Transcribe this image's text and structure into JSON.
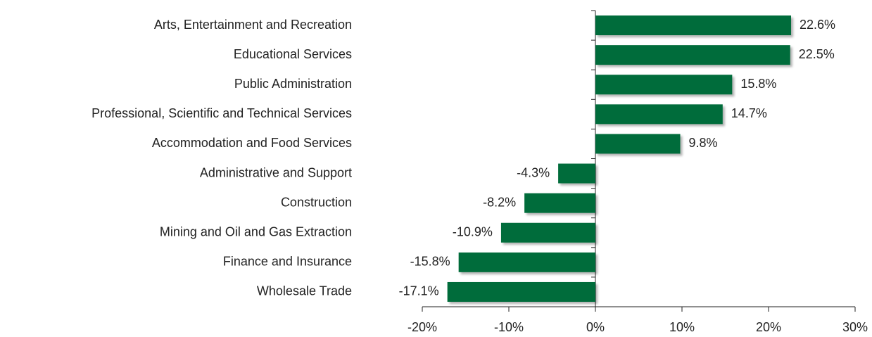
{
  "chart_data": {
    "type": "bar",
    "orientation": "horizontal",
    "categories": [
      "Arts, Entertainment and Recreation",
      "Educational Services",
      "Public Administration",
      "Professional, Scientific and Technical Services",
      "Accommodation and Food Services",
      "Administrative and Support",
      "Construction",
      "Mining and Oil and Gas Extraction",
      "Finance and Insurance",
      "Wholesale Trade"
    ],
    "values": [
      22.6,
      22.5,
      15.8,
      14.7,
      9.8,
      -4.3,
      -8.2,
      -10.9,
      -15.8,
      -17.1
    ],
    "value_labels": [
      "22.6%",
      "22.5%",
      "15.8%",
      "14.7%",
      "9.8%",
      "-4.3%",
      "-8.2%",
      "-10.9%",
      "-15.8%",
      "-17.1%"
    ],
    "color": "#046c3a",
    "xlim": [
      -20,
      30
    ],
    "xticks": [
      {
        "value": -20,
        "label": "-20%"
      },
      {
        "value": -10,
        "label": "-10%"
      },
      {
        "value": 0,
        "label": "0%"
      },
      {
        "value": 10,
        "label": "10%"
      },
      {
        "value": 20,
        "label": "20%"
      },
      {
        "value": 30,
        "label": "30%"
      }
    ],
    "grid": false
  }
}
